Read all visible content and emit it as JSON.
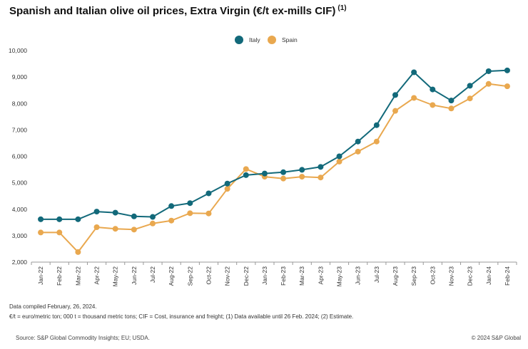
{
  "header": {
    "title": "Spanish and Italian olive oil prices, Extra Virgin (€/t ex-mills CIF)",
    "title_note": "(1)"
  },
  "notes": {
    "compiled": "Data compiled February, 26, 2024.",
    "definitions": "€/t = euro/metric ton; 000 t = thousand metric tons; CIF = Cost, insurance and freight; (1) Data available until 26 Feb. 2024; (2) Estimate."
  },
  "footer": {
    "source": "Source: S&P Global Commodity Insights; EU; USDA.",
    "copyright": "© 2024 S&P Global"
  },
  "chart_data": {
    "type": "line",
    "title": "Spanish and Italian olive oil prices, Extra Virgin (€/t ex-mills CIF)",
    "xlabel": "",
    "ylabel": "",
    "ylim": [
      2000,
      10000
    ],
    "yticks": [
      2000,
      3000,
      4000,
      5000,
      6000,
      7000,
      8000,
      9000,
      10000
    ],
    "ytick_labels": [
      "2,000",
      "3,000",
      "4,000",
      "5,000",
      "6,000",
      "7,000",
      "8,000",
      "9,000",
      "10,000"
    ],
    "grid": false,
    "legend_position": "top-center",
    "categories": [
      "Jan-22",
      "Feb-22",
      "Mar-22",
      "Apr-22",
      "May-22",
      "Jun-22",
      "Jul-22",
      "Aug-22",
      "Sep-22",
      "Oct-22",
      "Nov-22",
      "Dec-22",
      "Jan-23",
      "Feb-23",
      "Mar-23",
      "Apr-23",
      "May-23",
      "Jun-23",
      "Jul-23",
      "Aug-23",
      "Sep-23",
      "Oct-23",
      "Nov-23",
      "Dec-23",
      "Jan-24",
      "Feb-24"
    ],
    "series": [
      {
        "name": "Italy",
        "color": "#12697a",
        "values": [
          3620,
          3620,
          3620,
          3910,
          3870,
          3730,
          3710,
          4120,
          4230,
          4600,
          4970,
          5290,
          5350,
          5400,
          5490,
          5600,
          6000,
          6560,
          7180,
          8320,
          9180,
          8530,
          8110,
          8670,
          9220,
          9250
        ]
      },
      {
        "name": "Spain",
        "color": "#e9a84f",
        "values": [
          3120,
          3120,
          2380,
          3320,
          3260,
          3230,
          3460,
          3570,
          3850,
          3840,
          4770,
          5520,
          5230,
          5160,
          5230,
          5200,
          5800,
          6180,
          6560,
          7720,
          8210,
          7940,
          7810,
          8190,
          8740,
          8650
        ]
      }
    ]
  }
}
